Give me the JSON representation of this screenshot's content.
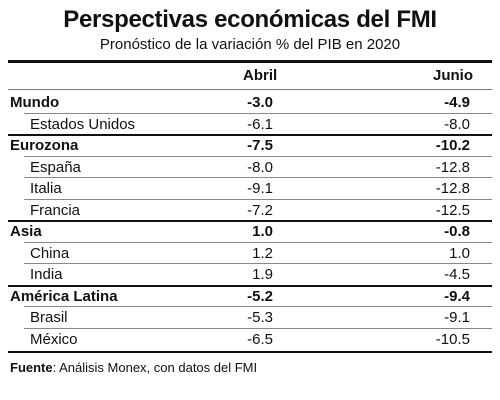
{
  "chart_data": {
    "type": "table",
    "title": "Perspectivas económicas del FMI",
    "subtitle": "Pronóstico de la variación % del PIB en 2020",
    "columns": [
      "Abril",
      "Junio"
    ],
    "groups": [
      {
        "name": "Mundo",
        "abril": "-3.0",
        "junio": "-4.9",
        "items": [
          {
            "name": "Estados Unidos",
            "abril": "-6.1",
            "junio": "-8.0"
          }
        ]
      },
      {
        "name": "Eurozona",
        "abril": "-7.5",
        "junio": "-10.2",
        "items": [
          {
            "name": "España",
            "abril": "-8.0",
            "junio": "-12.8"
          },
          {
            "name": "Italia",
            "abril": "-9.1",
            "junio": "-12.8"
          },
          {
            "name": "Francia",
            "abril": "-7.2",
            "junio": "-12.5"
          }
        ]
      },
      {
        "name": "Asia",
        "abril": "1.0",
        "junio": "-0.8",
        "items": [
          {
            "name": "China",
            "abril": "1.2",
            "junio": "1.0"
          },
          {
            "name": "India",
            "abril": "1.9",
            "junio": "-4.5"
          }
        ]
      },
      {
        "name": "América Latina",
        "abril": "-5.2",
        "junio": "-9.4",
        "items": [
          {
            "name": "Brasil",
            "abril": "-5.3",
            "junio": "-9.1"
          },
          {
            "name": "México",
            "abril": "-6.5",
            "junio": "-10.5"
          }
        ]
      }
    ],
    "source_label": "Fuente",
    "source_text": ": Análisis Monex, con datos del FMI"
  }
}
